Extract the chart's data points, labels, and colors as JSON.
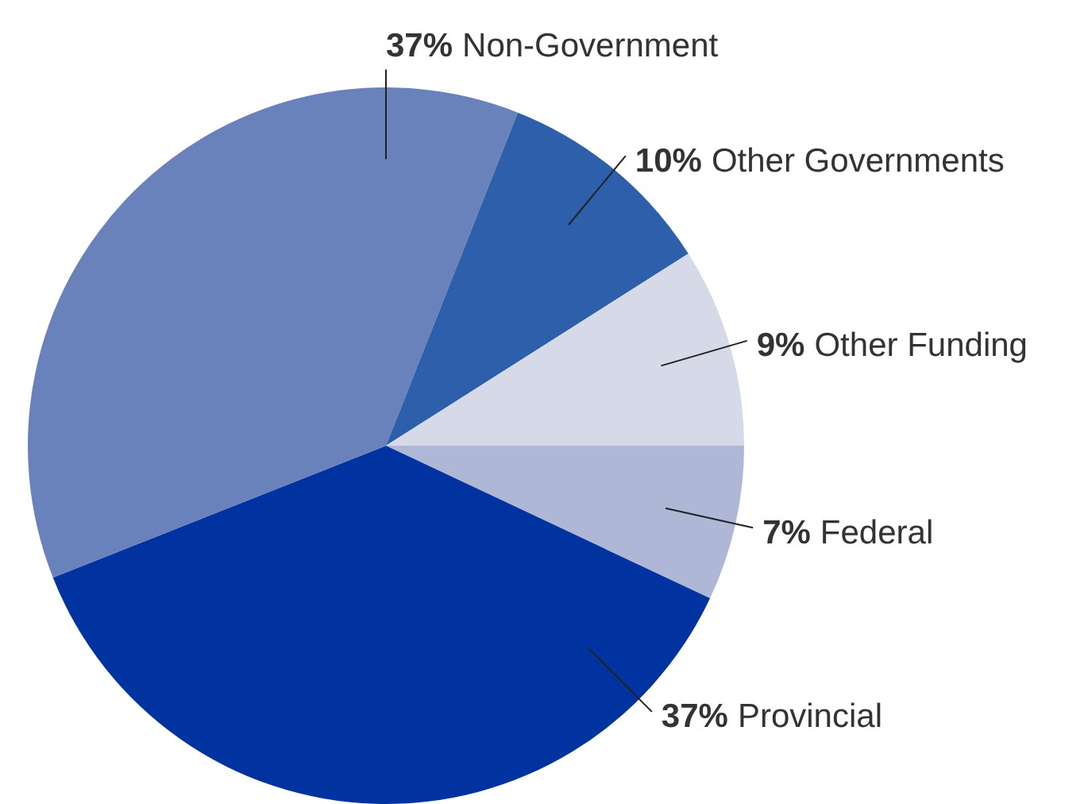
{
  "chart_data": {
    "type": "pie",
    "categories": [
      "Federal",
      "Provincial",
      "Non-Government",
      "Other Governments",
      "Other Funding"
    ],
    "values": [
      7,
      37,
      37,
      10,
      9
    ],
    "value_labels": [
      "7%",
      "37%",
      "37%",
      "10%",
      "9%"
    ],
    "colors": [
      "#aeb8d6",
      "#0033a0",
      "#6a82bb",
      "#2e5fab",
      "#d5d9e8"
    ],
    "legend": false
  }
}
